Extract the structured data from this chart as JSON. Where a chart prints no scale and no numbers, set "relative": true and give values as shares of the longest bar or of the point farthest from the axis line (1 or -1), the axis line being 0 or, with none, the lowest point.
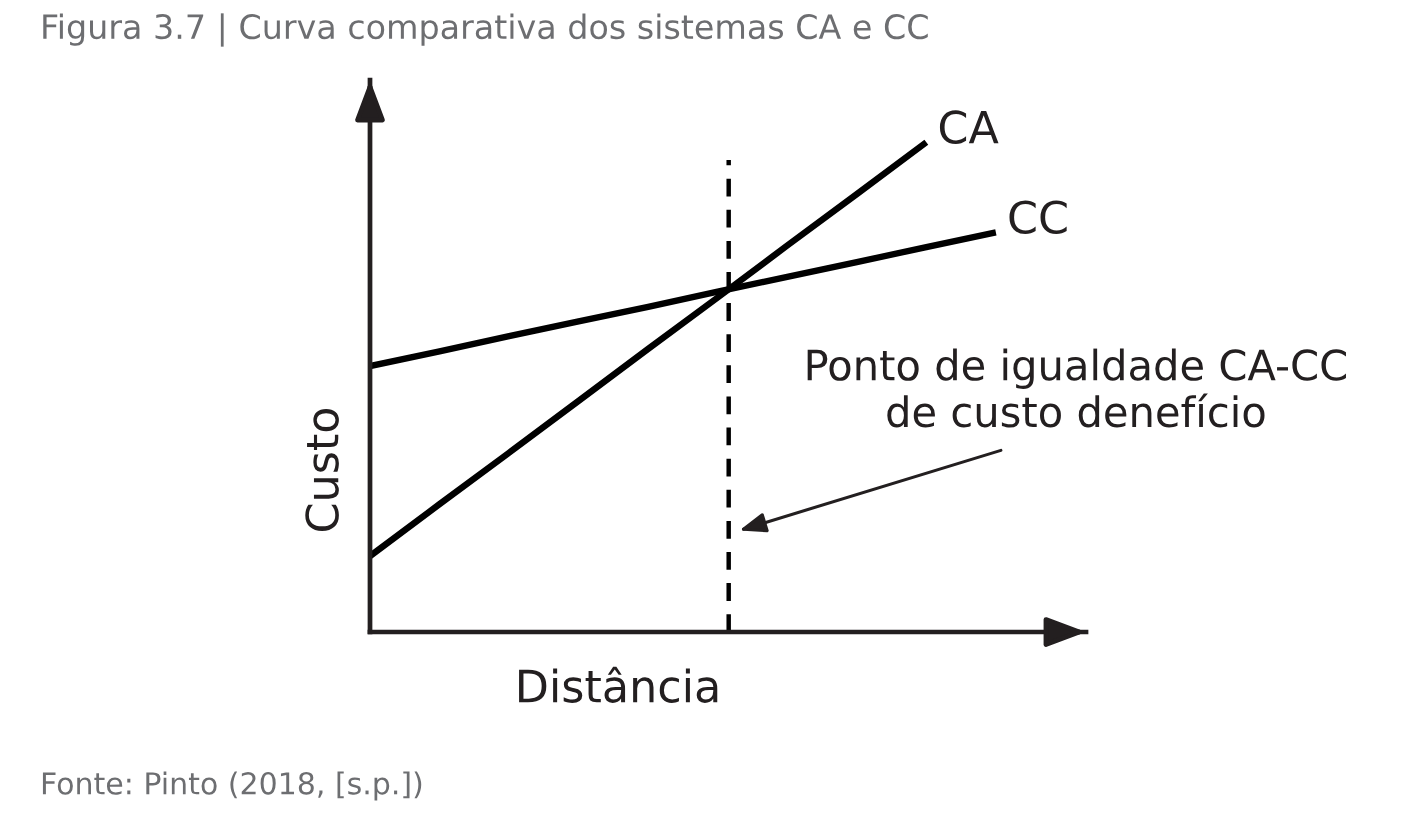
{
  "chart_data": {
    "type": "line",
    "title": "Figura 3.7 | Curva comparativa dos sistemas CA e CC",
    "xlabel": "Distância",
    "ylabel": "Custo",
    "relative": true,
    "tick_labels": false,
    "marker": "none",
    "line_style": "solid",
    "categories": [
      null,
      null,
      null,
      null,
      null,
      null,
      null,
      null,
      null,
      null
    ],
    "series": [
      {
        "name": "CA",
        "color": "#000000",
        "values": [
          0.155,
          0.261,
          0.366,
          0.472,
          0.578,
          0.683,
          0.789,
          0.894,
          1,
          null
        ]
      },
      {
        "name": "CC",
        "color": "#000000",
        "values": [
          0.543,
          0.573,
          0.604,
          0.634,
          0.664,
          0.695,
          0.725,
          0.755,
          0.786,
          0.816
        ]
      }
    ],
    "annotations": [
      "Ponto de igualdade CA-CC\nde custo denefício",
      "Fonte: Pinto (2018, [s.p.])"
    ]
  }
}
